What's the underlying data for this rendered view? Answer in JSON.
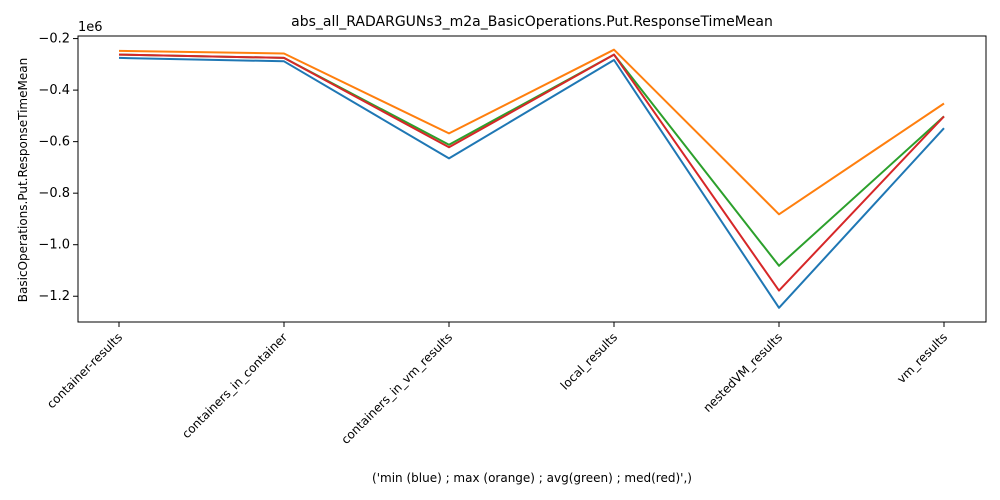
{
  "chart_data": {
    "type": "line",
    "title": "abs_all_RADARGUNs3_m2a_BasicOperations.Put.ResponseTimeMean",
    "xlabel": "('min (blue) ; max (orange) ; avg(green) ; med(red)',)",
    "ylabel": "BasicOperations.Put.ResponseTimeMean",
    "offset_label": "1e6",
    "categories": [
      "container-results",
      "containers_in_container",
      "containers_in_vm_results",
      "local_results",
      "nestedVM_results",
      "vm_results"
    ],
    "yticks": [
      -1.2,
      -1.0,
      -0.8,
      -0.6,
      -0.4,
      -0.2
    ],
    "ytick_labels": [
      "−1.2",
      "−1.0",
      "−0.8",
      "−0.6",
      "−0.4",
      "−0.2"
    ],
    "ylim": [
      -1.3,
      -0.19
    ],
    "grid": false,
    "series": [
      {
        "color": "#1f77b4",
        "values": [
          -0.275,
          -0.288,
          -0.665,
          -0.283,
          -1.245,
          -0.548
        ]
      },
      {
        "color": "#ff7f0e",
        "values": [
          -0.248,
          -0.258,
          -0.568,
          -0.243,
          -0.882,
          -0.452
        ]
      },
      {
        "color": "#2ca02c",
        "values": [
          -0.262,
          -0.275,
          -0.612,
          -0.262,
          -1.082,
          -0.502
        ]
      },
      {
        "color": "#d62728",
        "values": [
          -0.262,
          -0.275,
          -0.622,
          -0.262,
          -1.178,
          -0.502
        ]
      }
    ]
  }
}
